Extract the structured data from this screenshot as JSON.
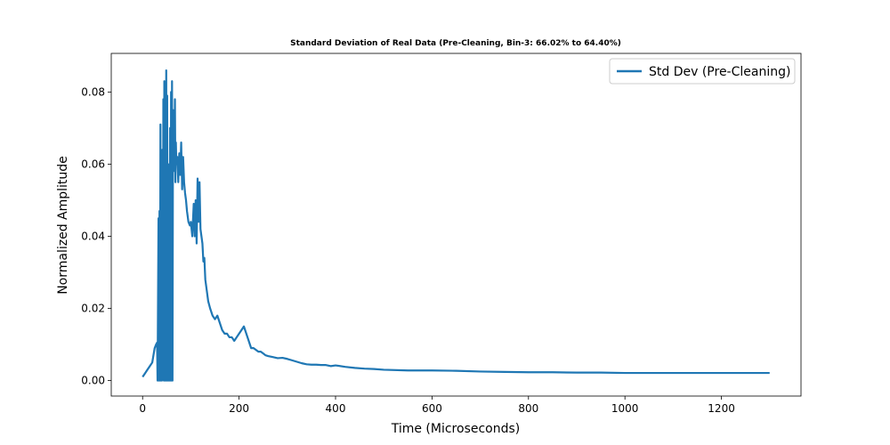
{
  "chart_data": {
    "type": "line",
    "title": "Standard Deviation of Real Data (Pre-Cleaning, Bin-3: 66.02% to 64.40%)",
    "xlabel": "Time (Microseconds)",
    "ylabel": "Normalized Amplitude",
    "xlim": [
      -65,
      1365
    ],
    "ylim": [
      -0.0043,
      0.0907
    ],
    "xticks": [
      0,
      200,
      400,
      600,
      800,
      1000,
      1200
    ],
    "xtick_labels": [
      "0",
      "200",
      "400",
      "600",
      "800",
      "1000",
      "1200"
    ],
    "yticks": [
      0.0,
      0.02,
      0.04,
      0.06,
      0.08
    ],
    "ytick_labels": [
      "0.00",
      "0.02",
      "0.04",
      "0.06",
      "0.08"
    ],
    "legend": {
      "placement": "top-right",
      "entries": [
        "Std Dev (Pre-Cleaning)"
      ]
    },
    "color": "#1f77b4",
    "series": [
      {
        "name": "Std Dev (Pre-Cleaning)",
        "x": [
          0,
          5,
          10,
          15,
          20,
          25,
          28,
          30,
          31,
          33,
          34,
          35,
          36,
          37,
          38,
          39,
          40,
          41,
          42,
          43,
          44,
          45,
          46,
          47,
          48,
          49,
          50,
          51,
          52,
          53,
          54,
          55,
          56,
          57,
          58,
          59,
          60,
          61,
          62,
          63,
          64,
          65,
          66,
          67,
          68,
          69,
          70,
          72,
          74,
          76,
          78,
          80,
          82,
          84,
          86,
          88,
          90,
          92,
          95,
          98,
          100,
          103,
          106,
          108,
          110,
          112,
          114,
          116,
          118,
          120,
          122,
          124,
          126,
          128,
          130,
          133,
          136,
          140,
          145,
          150,
          155,
          160,
          165,
          170,
          175,
          180,
          185,
          190,
          195,
          200,
          205,
          210,
          215,
          220,
          225,
          230,
          235,
          240,
          245,
          250,
          255,
          260,
          270,
          280,
          290,
          300,
          310,
          320,
          330,
          340,
          350,
          360,
          370,
          380,
          390,
          400,
          420,
          440,
          460,
          480,
          500,
          550,
          600,
          650,
          700,
          750,
          800,
          850,
          900,
          950,
          1000,
          1050,
          1100,
          1150,
          1200,
          1250,
          1300
        ],
        "values": [
          0.001,
          0.002,
          0.003,
          0.004,
          0.005,
          0.009,
          0.01,
          0.0105,
          0.0,
          0.045,
          0.0,
          0.047,
          0.0,
          0.071,
          0.0,
          0.062,
          0.0,
          0.064,
          0.003,
          0.078,
          0.0,
          0.083,
          0.0,
          0.08,
          0.0,
          0.086,
          0.0,
          0.079,
          0.0,
          0.06,
          0.0,
          0.05,
          0.0,
          0.07,
          0.0,
          0.08,
          0.0,
          0.083,
          0.0,
          0.075,
          0.058,
          0.07,
          0.06,
          0.078,
          0.055,
          0.066,
          0.06,
          0.062,
          0.055,
          0.063,
          0.057,
          0.066,
          0.053,
          0.062,
          0.055,
          0.052,
          0.05,
          0.047,
          0.044,
          0.043,
          0.044,
          0.04,
          0.049,
          0.04,
          0.05,
          0.038,
          0.056,
          0.044,
          0.055,
          0.042,
          0.04,
          0.038,
          0.033,
          0.034,
          0.028,
          0.025,
          0.022,
          0.02,
          0.018,
          0.017,
          0.018,
          0.016,
          0.014,
          0.013,
          0.013,
          0.012,
          0.012,
          0.011,
          0.012,
          0.013,
          0.014,
          0.015,
          0.013,
          0.011,
          0.009,
          0.009,
          0.0085,
          0.008,
          0.008,
          0.0075,
          0.007,
          0.0068,
          0.0065,
          0.0062,
          0.0063,
          0.006,
          0.0056,
          0.0052,
          0.0048,
          0.0045,
          0.0044,
          0.0044,
          0.0043,
          0.0043,
          0.004,
          0.0042,
          0.0038,
          0.0035,
          0.0033,
          0.0032,
          0.003,
          0.0028,
          0.0028,
          0.0027,
          0.0025,
          0.0024,
          0.0023,
          0.0023,
          0.0022,
          0.0022,
          0.0021,
          0.0021,
          0.0021,
          0.0021,
          0.0021,
          0.0021,
          0.0021
        ]
      }
    ]
  }
}
